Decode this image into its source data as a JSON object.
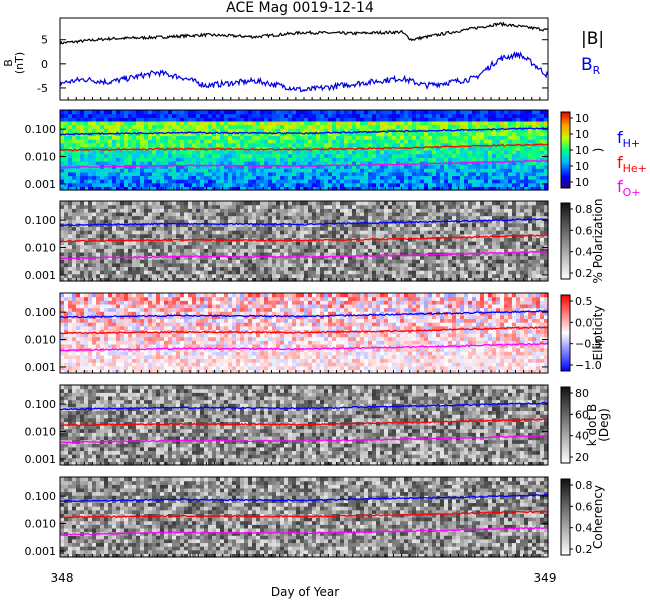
{
  "title": "ACE Mag 0019-12-14",
  "xaxis": {
    "label": "Day of Year",
    "start_label": "348",
    "end_label": "349",
    "range": [
      348,
      349
    ]
  },
  "colors": {
    "bmag": "#000000",
    "br": "#0000dd",
    "fH": "#0000ff",
    "fHe": "#ff0000",
    "fO": "#ff00ff"
  },
  "chart_data": [
    {
      "type": "line",
      "panel": "magnetic-field",
      "ylabel": "B\n(nT)",
      "ylim": [
        -7.5,
        9.5
      ],
      "yticks": [
        -5,
        0,
        5
      ],
      "legend": {
        "bmag": "|B|",
        "br": "B",
        "br_sub": "R"
      },
      "series": [
        {
          "name": "|B|",
          "x": [
            348.0,
            348.1,
            348.2,
            348.3,
            348.4,
            348.5,
            348.6,
            348.7,
            348.72,
            348.8,
            348.9,
            349.0
          ],
          "values": [
            4.3,
            5.2,
            5.5,
            6.0,
            5.6,
            6.5,
            6.3,
            6.6,
            5.0,
            6.5,
            8.3,
            7.0
          ]
        },
        {
          "name": "B",
          "x": [
            348.0,
            348.05,
            348.1,
            348.2,
            348.25,
            348.3,
            348.4,
            348.5,
            348.6,
            348.7,
            348.75,
            348.8,
            348.85,
            348.9,
            348.94,
            348.97,
            349.0
          ],
          "values": [
            -4.0,
            -3.2,
            -3.8,
            -1.8,
            -2.8,
            -4.5,
            -3.5,
            -5.5,
            -4.2,
            -3.0,
            -4.5,
            -3.8,
            -3.0,
            1.0,
            2.0,
            0.0,
            -2.5
          ]
        }
      ]
    },
    {
      "type": "heatmap",
      "panel": "power",
      "ylabel": "",
      "colorbar_label": ")",
      "colorbar_ticks": [
        "10",
        "10",
        "10",
        "10",
        "10"
      ],
      "yticks": [
        "0.100",
        "0.010",
        "0.001"
      ],
      "ylim": [
        0.0006,
        0.5
      ],
      "legend": [
        {
          "text": "f",
          "sub": "H+"
        },
        {
          "text": "f",
          "sub": "He+"
        },
        {
          "text": "f",
          "sub": "O+"
        }
      ]
    },
    {
      "type": "heatmap",
      "panel": "polarization",
      "colorbar_label": "% Polarization",
      "colorbar_ticks": [
        "0.2",
        "0.4",
        "0.6",
        "0.8"
      ],
      "yticks": [
        "0.100",
        "0.010",
        "0.001"
      ]
    },
    {
      "type": "heatmap",
      "panel": "ellipticity",
      "colorbar_label": "Ellipticity",
      "colorbar_ticks": [
        "−1.0",
        "−0.5",
        "0.0",
        "0.5"
      ],
      "yticks": [
        "0.100",
        "0.010",
        "0.001"
      ]
    },
    {
      "type": "heatmap",
      "panel": "kdotb",
      "colorbar_label": "k dot B\n(Deg)",
      "colorbar_ticks": [
        "20",
        "40",
        "60",
        "80"
      ],
      "yticks": [
        "0.100",
        "0.010",
        "0.001"
      ]
    },
    {
      "type": "heatmap",
      "panel": "coherency",
      "colorbar_label": "Coherency",
      "colorbar_ticks": [
        "0.2",
        "0.4",
        "0.6",
        "0.8"
      ],
      "yticks": [
        "0.100",
        "0.010",
        "0.001"
      ]
    },
    {
      "type": "line",
      "panel": "gyrofrequencies (overlaid on every spectrogram)",
      "series": [
        {
          "name": "fH+",
          "x": [
            348.0,
            348.25,
            348.5,
            348.72,
            348.8,
            349.0
          ],
          "values": [
            0.065,
            0.075,
            0.07,
            0.085,
            0.09,
            0.11
          ]
        },
        {
          "name": "fHe+",
          "x": [
            348.0,
            348.25,
            348.5,
            348.72,
            348.8,
            349.0
          ],
          "values": [
            0.017,
            0.019,
            0.018,
            0.021,
            0.023,
            0.028
          ]
        },
        {
          "name": "fO+",
          "x": [
            348.0,
            348.25,
            348.5,
            348.72,
            348.8,
            349.0
          ],
          "values": [
            0.004,
            0.0047,
            0.0045,
            0.0053,
            0.0057,
            0.007
          ]
        }
      ]
    }
  ]
}
